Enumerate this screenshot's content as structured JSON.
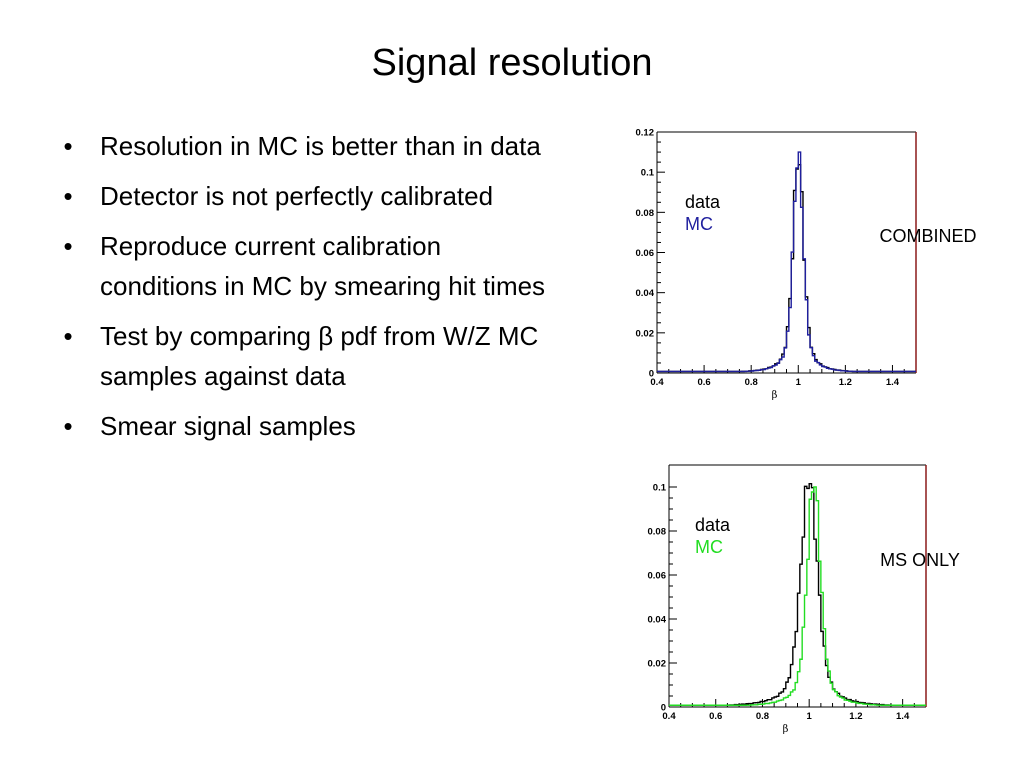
{
  "slide": {
    "title": "Signal resolution",
    "bullets": [
      "Resolution in MC is better than in data",
      "Detector is not perfectly calibrated",
      "Reproduce current calibration conditions in MC by smearing hit times",
      "Test by comparing β pdf from W/Z MC samples against data",
      "Smear signal samples"
    ]
  },
  "chart_data": [
    {
      "type": "line",
      "title": "",
      "side_label": "COMBINED",
      "xlabel": "β",
      "ylabel": "",
      "xlim": [
        0.4,
        1.5
      ],
      "ylim": [
        0,
        0.12
      ],
      "xticks": [
        "0.4",
        "0.6",
        "0.8",
        "1",
        "1.2",
        "1.4"
      ],
      "yticks": [
        "0",
        "0.02",
        "0.04",
        "0.06",
        "0.08",
        "0.1",
        "0.12"
      ],
      "legend": [
        "data",
        "MC"
      ],
      "series": [
        {
          "name": "data",
          "color": "#000000",
          "peak_x": 1.0,
          "peak_y": 0.108,
          "sigma": 0.022
        },
        {
          "name": "MC",
          "color": "#1f1f9e",
          "peak_x": 1.0,
          "peak_y": 0.11,
          "sigma": 0.021
        }
      ]
    },
    {
      "type": "line",
      "title": "",
      "side_label": "MS ONLY",
      "xlabel": "β",
      "ylabel": "",
      "xlim": [
        0.4,
        1.5
      ],
      "ylim": [
        0,
        0.11
      ],
      "xticks": [
        "0.4",
        "0.6",
        "0.8",
        "1",
        "1.2",
        "1.4"
      ],
      "yticks": [
        "0",
        "0.02",
        "0.04",
        "0.06",
        "0.08",
        "0.1"
      ],
      "legend": [
        "data",
        "MC"
      ],
      "series": [
        {
          "name": "data",
          "color": "#000000",
          "peak_x": 1.0,
          "peak_y": 0.104,
          "sigma": 0.035
        },
        {
          "name": "MC",
          "color": "#22dd22",
          "peak_x": 1.02,
          "peak_y": 0.103,
          "sigma": 0.028
        }
      ]
    }
  ]
}
